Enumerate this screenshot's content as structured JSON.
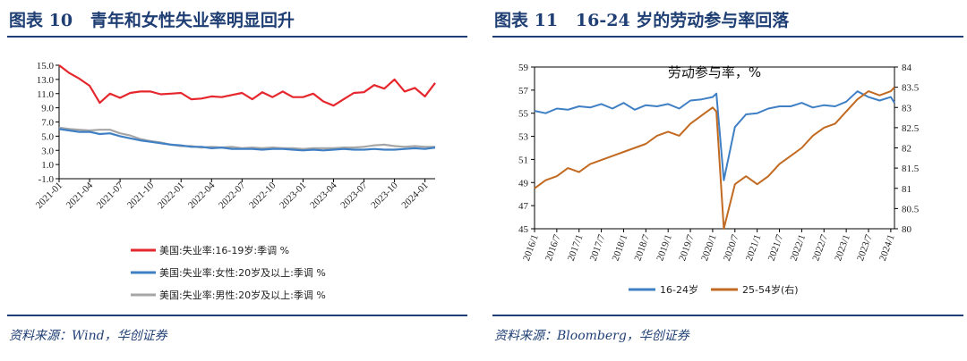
{
  "left": {
    "figure_label": "图表 10",
    "figure_title": "青年和女性失业率明显回升",
    "source": "资料来源：Wind，华创证券"
  },
  "right": {
    "figure_label": "图表 11",
    "figure_title": "16-24 岁的劳动参与率回落",
    "source": "资料来源：Bloomberg，华创证券"
  },
  "colors": {
    "red": "#e5272d",
    "blue": "#3f7fc4",
    "gray": "#a6a6a6",
    "orange": "#c26a21",
    "navy": "#1f3f74"
  },
  "chart_data": [
    {
      "type": "line",
      "title": "",
      "xlabel": "",
      "ylabel": "",
      "x": [
        "2021-01",
        "2021-02",
        "2021-03",
        "2021-04",
        "2021-05",
        "2021-06",
        "2021-07",
        "2021-08",
        "2021-09",
        "2021-10",
        "2021-11",
        "2021-12",
        "2022-01",
        "2022-02",
        "2022-03",
        "2022-04",
        "2022-05",
        "2022-06",
        "2022-07",
        "2022-08",
        "2022-09",
        "2022-10",
        "2022-11",
        "2022-12",
        "2023-01",
        "2023-02",
        "2023-03",
        "2023-04",
        "2023-05",
        "2023-06",
        "2023-07",
        "2023-08",
        "2023-09",
        "2023-10",
        "2023-11",
        "2023-12",
        "2024-01",
        "2024-02"
      ],
      "x_tick_labels": [
        "2021-01",
        "2021-04",
        "2021-07",
        "2021-10",
        "2022-01",
        "2022-04",
        "2022-07",
        "2022-10",
        "2023-01",
        "2023-04",
        "2023-07",
        "2023-10",
        "2024-01"
      ],
      "ylim": [
        -1.0,
        15.0
      ],
      "y_ticks": [
        "15.0",
        "13.0",
        "11.0",
        "9.0",
        "7.0",
        "5.0",
        "3.0",
        "1.0",
        "-1.0"
      ],
      "grid": false,
      "legend_position": "bottom",
      "series": [
        {
          "name": "美国:失业率:16-19岁:季调 %",
          "color": "#e5272d",
          "values": [
            15.0,
            13.9,
            13.1,
            12.1,
            9.7,
            11.0,
            10.4,
            11.1,
            11.3,
            11.3,
            10.9,
            11.0,
            11.1,
            10.2,
            10.3,
            10.6,
            10.5,
            10.8,
            11.1,
            10.2,
            11.2,
            10.5,
            11.3,
            10.5,
            10.5,
            11.0,
            9.9,
            9.3,
            10.2,
            11.1,
            11.2,
            12.2,
            11.7,
            13.0,
            11.3,
            11.8,
            10.6,
            12.5
          ]
        },
        {
          "name": "美国:失业率:女性:20岁及以上:季调 %",
          "color": "#3f7fc4",
          "values": [
            6.0,
            5.8,
            5.6,
            5.6,
            5.3,
            5.4,
            5.0,
            4.7,
            4.4,
            4.2,
            4.0,
            3.8,
            3.7,
            3.5,
            3.5,
            3.3,
            3.4,
            3.2,
            3.2,
            3.2,
            3.1,
            3.2,
            3.2,
            3.1,
            3.0,
            3.1,
            3.0,
            3.1,
            3.2,
            3.1,
            3.1,
            3.2,
            3.1,
            3.1,
            3.2,
            3.3,
            3.2,
            3.4
          ]
        },
        {
          "name": "美国:失业率:男性:20岁及以上:季调 %",
          "color": "#a6a6a6",
          "values": [
            6.2,
            6.0,
            5.9,
            5.8,
            5.9,
            5.9,
            5.4,
            5.1,
            4.6,
            4.3,
            4.1,
            3.8,
            3.6,
            3.6,
            3.4,
            3.5,
            3.4,
            3.5,
            3.3,
            3.4,
            3.3,
            3.4,
            3.3,
            3.3,
            3.2,
            3.3,
            3.3,
            3.3,
            3.4,
            3.4,
            3.5,
            3.7,
            3.8,
            3.6,
            3.5,
            3.6,
            3.5,
            3.5
          ]
        }
      ]
    },
    {
      "type": "line",
      "title": "劳动参与率，%",
      "xlabel": "",
      "ylabel": "",
      "x_tick_labels": [
        "2016/1",
        "2016/7",
        "2017/1",
        "2017/7",
        "2018/1",
        "2018/7",
        "2019/1",
        "2019/7",
        "2020/1",
        "2020/7",
        "2021/1",
        "2021/7",
        "2022/1",
        "2022/7",
        "2023/1",
        "2023/7",
        "2024/1"
      ],
      "x_range": [
        "2016-01",
        "2024-02"
      ],
      "ylim_left": [
        45,
        59
      ],
      "y_ticks_left": [
        "59",
        "57",
        "55",
        "53",
        "51",
        "49",
        "47",
        "45"
      ],
      "ylim_right": [
        80,
        84
      ],
      "y_ticks_right": [
        "84",
        "83.5",
        "83",
        "82.5",
        "82",
        "81.5",
        "81",
        "80.5",
        "80"
      ],
      "grid": false,
      "legend_position": "bottom",
      "series": [
        {
          "name": "16-24岁",
          "axis": "left",
          "color": "#3f7fc4",
          "x": [
            "2016-01",
            "2016-04",
            "2016-07",
            "2016-10",
            "2017-01",
            "2017-04",
            "2017-07",
            "2017-10",
            "2018-01",
            "2018-04",
            "2018-07",
            "2018-10",
            "2019-01",
            "2019-04",
            "2019-07",
            "2019-10",
            "2020-01",
            "2020-02",
            "2020-04",
            "2020-07",
            "2020-10",
            "2021-01",
            "2021-04",
            "2021-07",
            "2021-10",
            "2022-01",
            "2022-04",
            "2022-07",
            "2022-10",
            "2023-01",
            "2023-04",
            "2023-07",
            "2023-10",
            "2024-01",
            "2024-02"
          ],
          "values": [
            55.2,
            55.0,
            55.4,
            55.3,
            55.6,
            55.5,
            55.8,
            55.4,
            55.9,
            55.3,
            55.7,
            55.6,
            55.8,
            55.4,
            56.1,
            56.2,
            56.4,
            56.7,
            49.2,
            53.8,
            54.9,
            55.0,
            55.4,
            55.6,
            55.6,
            55.9,
            55.5,
            55.7,
            55.6,
            56.0,
            56.9,
            56.4,
            56.1,
            56.4,
            55.9
          ]
        },
        {
          "name": "25-54岁(右)",
          "axis": "right",
          "color": "#c26a21",
          "x": [
            "2016-01",
            "2016-04",
            "2016-07",
            "2016-10",
            "2017-01",
            "2017-04",
            "2017-07",
            "2017-10",
            "2018-01",
            "2018-04",
            "2018-07",
            "2018-10",
            "2019-01",
            "2019-04",
            "2019-07",
            "2019-10",
            "2020-01",
            "2020-02",
            "2020-04",
            "2020-07",
            "2020-10",
            "2021-01",
            "2021-04",
            "2021-07",
            "2021-10",
            "2022-01",
            "2022-04",
            "2022-07",
            "2022-10",
            "2023-01",
            "2023-04",
            "2023-07",
            "2023-10",
            "2024-01",
            "2024-02"
          ],
          "values": [
            81.0,
            81.2,
            81.3,
            81.5,
            81.4,
            81.6,
            81.7,
            81.8,
            81.9,
            82.0,
            82.1,
            82.3,
            82.4,
            82.3,
            82.6,
            82.8,
            83.0,
            82.9,
            80.0,
            81.1,
            81.3,
            81.1,
            81.3,
            81.6,
            81.8,
            82.0,
            82.3,
            82.5,
            82.6,
            82.9,
            83.2,
            83.4,
            83.3,
            83.4,
            83.5
          ]
        }
      ]
    }
  ]
}
